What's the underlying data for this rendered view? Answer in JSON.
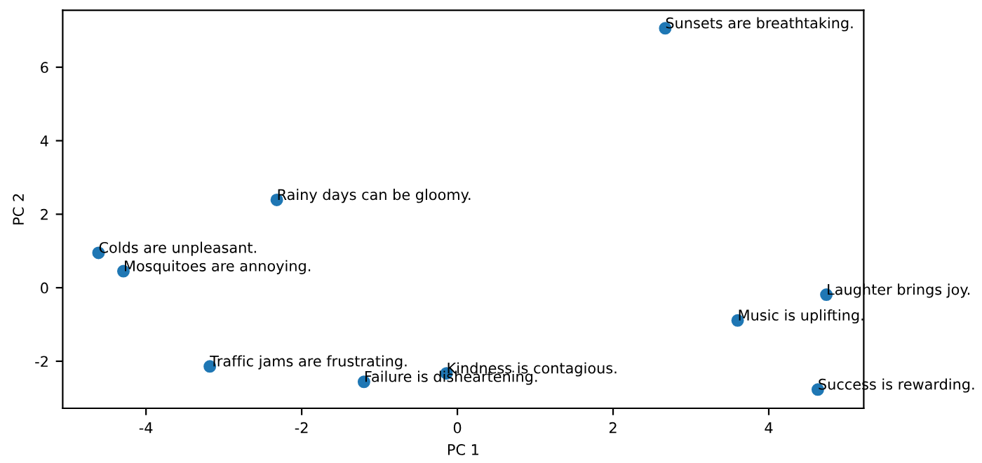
{
  "chart_data": {
    "type": "scatter",
    "xlabel": "PC 1",
    "ylabel": "PC 2",
    "x": [
      -4.29,
      -4.61,
      -2.32,
      -3.18,
      -1.2,
      -0.14,
      2.67,
      4.74,
      3.6,
      4.63
    ],
    "values": [
      0.45,
      0.95,
      2.39,
      -2.14,
      -2.56,
      -2.33,
      7.06,
      -0.19,
      -0.89,
      -2.77
    ],
    "color": "#1f77b4",
    "marker": "circle",
    "grid": false,
    "legend": false,
    "xlim": [
      -5.07,
      5.22
    ],
    "ylim": [
      -3.28,
      7.55
    ],
    "xticks": [
      -4,
      -2,
      0,
      2,
      4
    ],
    "yticks": [
      -2,
      0,
      2,
      4,
      6
    ],
    "annotations": [
      {
        "text": "Mosquitoes are annoying.",
        "x": -4.29,
        "y": 0.45
      },
      {
        "text": "Colds are unpleasant.",
        "x": -4.61,
        "y": 0.95
      },
      {
        "text": "Rainy days can be gloomy.",
        "x": -2.32,
        "y": 2.39
      },
      {
        "text": "Traffic jams are frustrating.",
        "x": -3.18,
        "y": -2.14
      },
      {
        "text": "Failure is disheartening.",
        "x": -1.2,
        "y": -2.56
      },
      {
        "text": "Kindness is contagious.",
        "x": -0.14,
        "y": -2.33
      },
      {
        "text": "Sunsets are breathtaking.",
        "x": 2.67,
        "y": 7.06
      },
      {
        "text": "Laughter brings joy.",
        "x": 4.74,
        "y": -0.19
      },
      {
        "text": "Music is uplifting.",
        "x": 3.6,
        "y": -0.89
      },
      {
        "text": "Success is rewarding.",
        "x": 4.63,
        "y": -2.77
      }
    ]
  }
}
